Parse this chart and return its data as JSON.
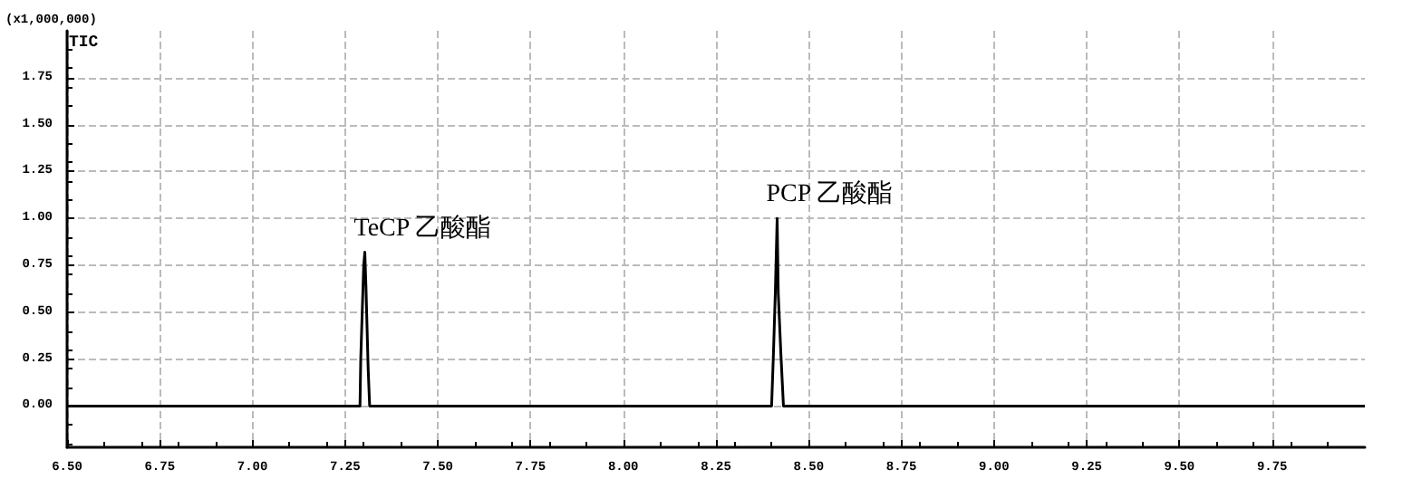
{
  "chart_data": {
    "type": "line",
    "ylabel": "(x1,000,000)",
    "annotations": [
      "TIC",
      {
        "text": "TeCP 乙酸酯",
        "x": 7.303,
        "y": 0.82
      },
      {
        "text": "PCP 乙酸酯",
        "x": 8.415,
        "y": 1.0
      }
    ],
    "series": [
      {
        "color": "#000000",
        "x": [
          6.5,
          7.29,
          7.292,
          7.3,
          7.303,
          7.306,
          7.312,
          7.316,
          8.4,
          8.405,
          8.41,
          8.415,
          8.418,
          8.425,
          8.432,
          10.0
        ],
        "values": [
          0,
          0,
          0.25,
          0.75,
          0.82,
          0.64,
          0.2,
          0,
          0,
          0.28,
          0.6,
          1.0,
          0.6,
          0.28,
          0,
          0
        ]
      }
    ],
    "xlim": [
      6.5,
      10.0
    ],
    "xticks": [
      {
        "value": 6.5,
        "label": "6.50"
      },
      {
        "value": 6.75,
        "label": "6.75"
      },
      {
        "value": 7,
        "label": "7.00"
      },
      {
        "value": 7.25,
        "label": "7.25"
      },
      {
        "value": 7.5,
        "label": "7.50"
      },
      {
        "value": 7.75,
        "label": "7.75"
      },
      {
        "value": 8,
        "label": "8.00"
      },
      {
        "value": 8.25,
        "label": "8.25"
      },
      {
        "value": 8.5,
        "label": "8.50"
      },
      {
        "value": 8.75,
        "label": "8.75"
      },
      {
        "value": 9,
        "label": "9.00"
      },
      {
        "value": 9.25,
        "label": "9.25"
      },
      {
        "value": 9.5,
        "label": "9.50"
      },
      {
        "value": 9.75,
        "label": "9.75"
      }
    ],
    "ylim": [
      -0.22,
      2.0
    ],
    "yticks": [
      {
        "value": 0,
        "label": "0.00"
      },
      {
        "value": 0.25,
        "label": "0.25"
      },
      {
        "value": 0.5,
        "label": "0.50"
      },
      {
        "value": 0.75,
        "label": "0.75"
      },
      {
        "value": 1,
        "label": "1.00"
      },
      {
        "value": 1.25,
        "label": "1.25"
      },
      {
        "value": 1.5,
        "label": "1.50"
      },
      {
        "value": 1.75,
        "label": "1.75"
      }
    ],
    "grid": true,
    "marker": "none",
    "line_style": "solid"
  }
}
